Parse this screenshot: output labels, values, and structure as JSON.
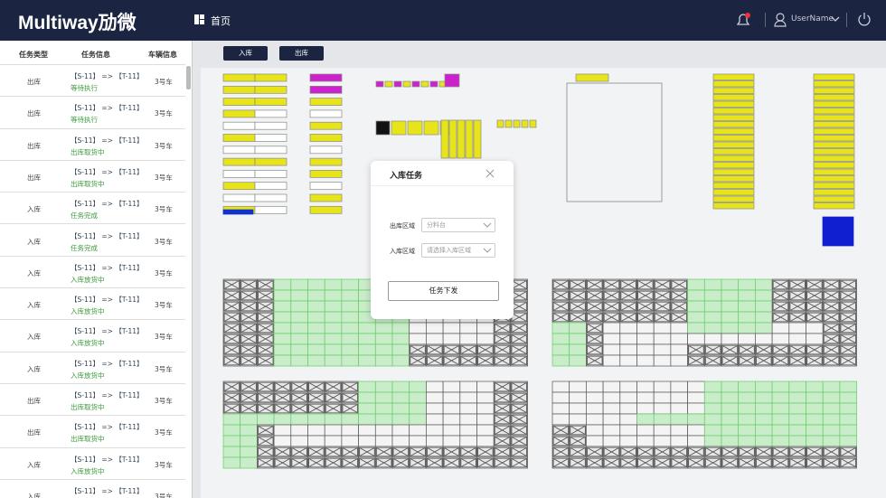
{
  "header": {
    "logo": "Multiway劢微",
    "nav": "首页",
    "user": "UserName"
  },
  "sidebar": {
    "columns": [
      "任务类型",
      "任务信息",
      "车辆信息"
    ],
    "rows": [
      {
        "type": "出库",
        "route": "【S-11】 => 【T-11】",
        "status": "等待执行",
        "vehicle": "3号车"
      },
      {
        "type": "出库",
        "route": "【S-11】 => 【T-11】",
        "status": "等待执行",
        "vehicle": "3号车"
      },
      {
        "type": "出库",
        "route": "【S-11】 => 【T-11】",
        "status": "出库取货中",
        "vehicle": "3号车"
      },
      {
        "type": "出库",
        "route": "【S-11】 => 【T-11】",
        "status": "出库取货中",
        "vehicle": "3号车"
      },
      {
        "type": "入库",
        "route": "【S-11】 => 【T-11】",
        "status": "任务完成",
        "vehicle": "3号车"
      },
      {
        "type": "入库",
        "route": "【S-11】 => 【T-11】",
        "status": "任务完成",
        "vehicle": "3号车"
      },
      {
        "type": "入库",
        "route": "【S-11】 => 【T-11】",
        "status": "入库放货中",
        "vehicle": "3号车"
      },
      {
        "type": "入库",
        "route": "【S-11】 => 【T-11】",
        "status": "入库放货中",
        "vehicle": "3号车"
      },
      {
        "type": "入库",
        "route": "【S-11】 => 【T-11】",
        "status": "入库放货中",
        "vehicle": "3号车"
      },
      {
        "type": "入库",
        "route": "【S-11】 => 【T-11】",
        "status": "入库放货中",
        "vehicle": "3号车"
      },
      {
        "type": "出库",
        "route": "【S-11】 => 【T-11】",
        "status": "出库取货中",
        "vehicle": "3号车"
      },
      {
        "type": "出库",
        "route": "【S-11】 => 【T-11】",
        "status": "出库取货中",
        "vehicle": "3号车"
      },
      {
        "type": "入库",
        "route": "【S-11】 => 【T-11】",
        "status": "入库放货中",
        "vehicle": "3号车"
      },
      {
        "type": "入库",
        "route": "【S-11】 => 【T-11】",
        "vehicle": "3号车"
      }
    ]
  },
  "toolbar": {
    "buttons": [
      "入库",
      "出库"
    ]
  },
  "modal": {
    "title": "入库任务",
    "fields": [
      {
        "label": "出库区域",
        "value": "分料台"
      },
      {
        "label": "入库区域",
        "placeholder": "请选择入库区域"
      }
    ],
    "button": "任务下发"
  }
}
